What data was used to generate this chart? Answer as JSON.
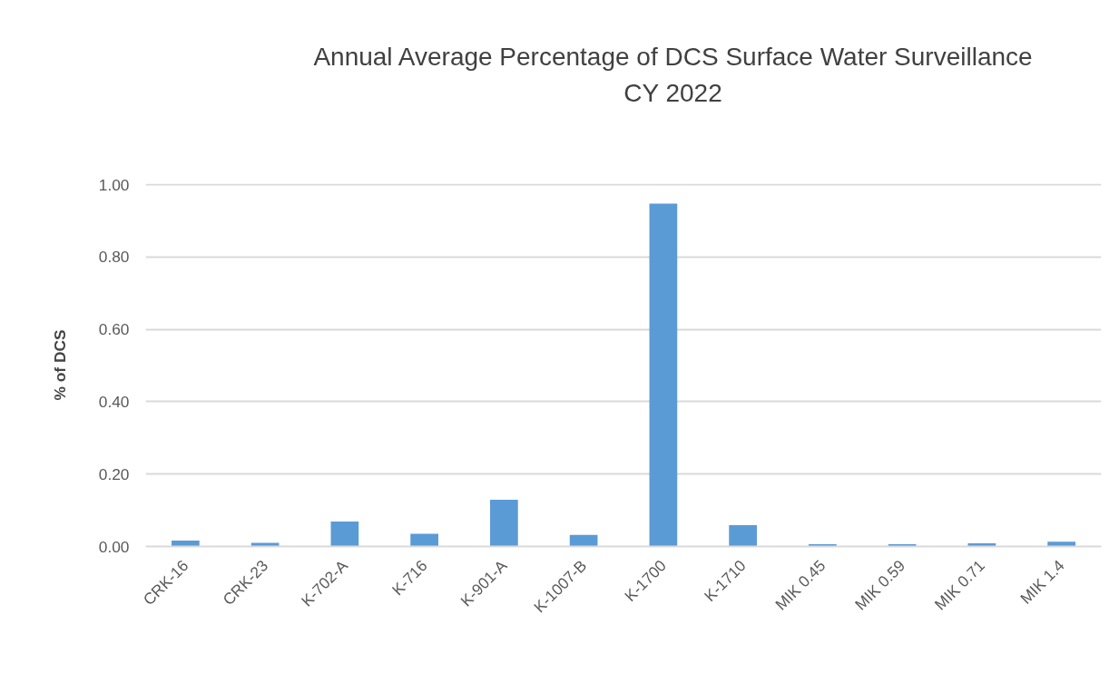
{
  "chart_data": {
    "type": "bar",
    "title": "Annual Average Percentage of DCS Surface Water Surveillance\nCY 2022",
    "ylabel": "% of DCS",
    "categories": [
      "CRK-16",
      "CRK-23",
      "K-702-A",
      "K-716",
      "K-901-A",
      "K-1007-B",
      "K-1700",
      "K-1710",
      "MIK 0.45",
      "MIK 0.59",
      "MIK 0.71",
      "MIK 1.4"
    ],
    "values": [
      0.016,
      0.01,
      0.069,
      0.035,
      0.129,
      0.032,
      0.948,
      0.059,
      0.006,
      0.006,
      0.009,
      0.013
    ],
    "color": "#5b9bd5",
    "ylim": [
      0,
      1.0
    ],
    "yticks": [
      {
        "value": 0,
        "label": "0.00"
      },
      {
        "value": 0.2,
        "label": "0.20"
      },
      {
        "value": 0.4,
        "label": "0.40"
      },
      {
        "value": 0.6,
        "label": "0.60"
      },
      {
        "value": 0.8,
        "label": "0.80"
      },
      {
        "value": 1.0,
        "label": "1.00"
      }
    ],
    "grid": "y"
  }
}
